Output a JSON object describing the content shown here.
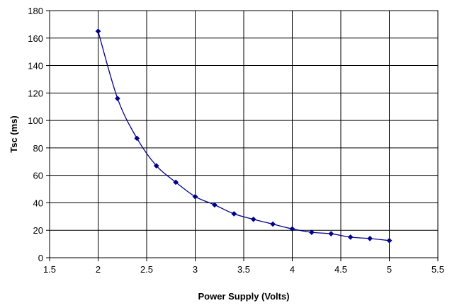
{
  "chart_data": {
    "type": "line",
    "title": "",
    "xlabel": "Power Supply (Volts)",
    "ylabel": "Tsc (ms)",
    "xlim": [
      1.5,
      5.5
    ],
    "ylim": [
      0,
      180
    ],
    "xticks": [
      1.5,
      2,
      2.5,
      3,
      3.5,
      4,
      4.5,
      5,
      5.5
    ],
    "yticks": [
      0,
      20,
      40,
      60,
      80,
      100,
      120,
      140,
      160,
      180
    ],
    "grid": true,
    "legend": "none",
    "series": [
      {
        "color": "#00008B",
        "marker": "diamond",
        "x": [
          2.0,
          2.2,
          2.4,
          2.6,
          2.8,
          3.0,
          3.2,
          3.4,
          3.6,
          3.8,
          4.0,
          4.2,
          4.4,
          4.6,
          4.8,
          5.0
        ],
        "y": [
          165,
          116,
          87,
          67,
          55,
          44.5,
          38.5,
          32,
          28,
          24.5,
          21,
          18.5,
          17.5,
          15,
          14,
          12.5
        ]
      }
    ]
  }
}
